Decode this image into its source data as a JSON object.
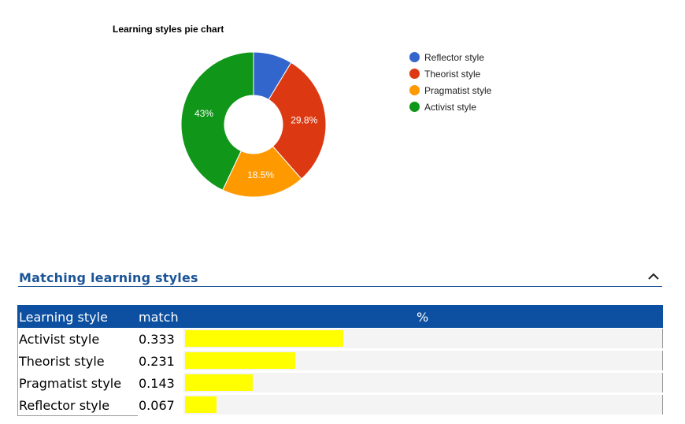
{
  "chart_data": {
    "type": "pie",
    "title": "Learning styles pie chart",
    "donut": true,
    "legend_position": "right",
    "slices": [
      {
        "label": "Reflector style",
        "value": 8.7,
        "color": "#3366cc",
        "data_label": ""
      },
      {
        "label": "Theorist style",
        "value": 29.8,
        "color": "#dc3912",
        "data_label": "29.8%"
      },
      {
        "label": "Pragmatist style",
        "value": 18.5,
        "color": "#ff9900",
        "data_label": "18.5%"
      },
      {
        "label": "Activist style",
        "value": 43.0,
        "color": "#109618",
        "data_label": "43%"
      }
    ]
  },
  "section": {
    "title": "Matching learning styles",
    "collapse_icon": "chevron-up-icon"
  },
  "table": {
    "headers": {
      "style": "Learning style",
      "match": "match",
      "percent": "%"
    },
    "rows": [
      {
        "style": "Activist style",
        "match": "0.333",
        "bar_fraction": 0.333
      },
      {
        "style": "Theorist style",
        "match": "0.231",
        "bar_fraction": 0.231
      },
      {
        "style": "Pragmatist style",
        "match": "0.143",
        "bar_fraction": 0.143
      },
      {
        "style": "Reflector style",
        "match": "0.067",
        "bar_fraction": 0.067
      }
    ],
    "bar_color": "#ffff00",
    "header_color": "#0d4fa0"
  }
}
